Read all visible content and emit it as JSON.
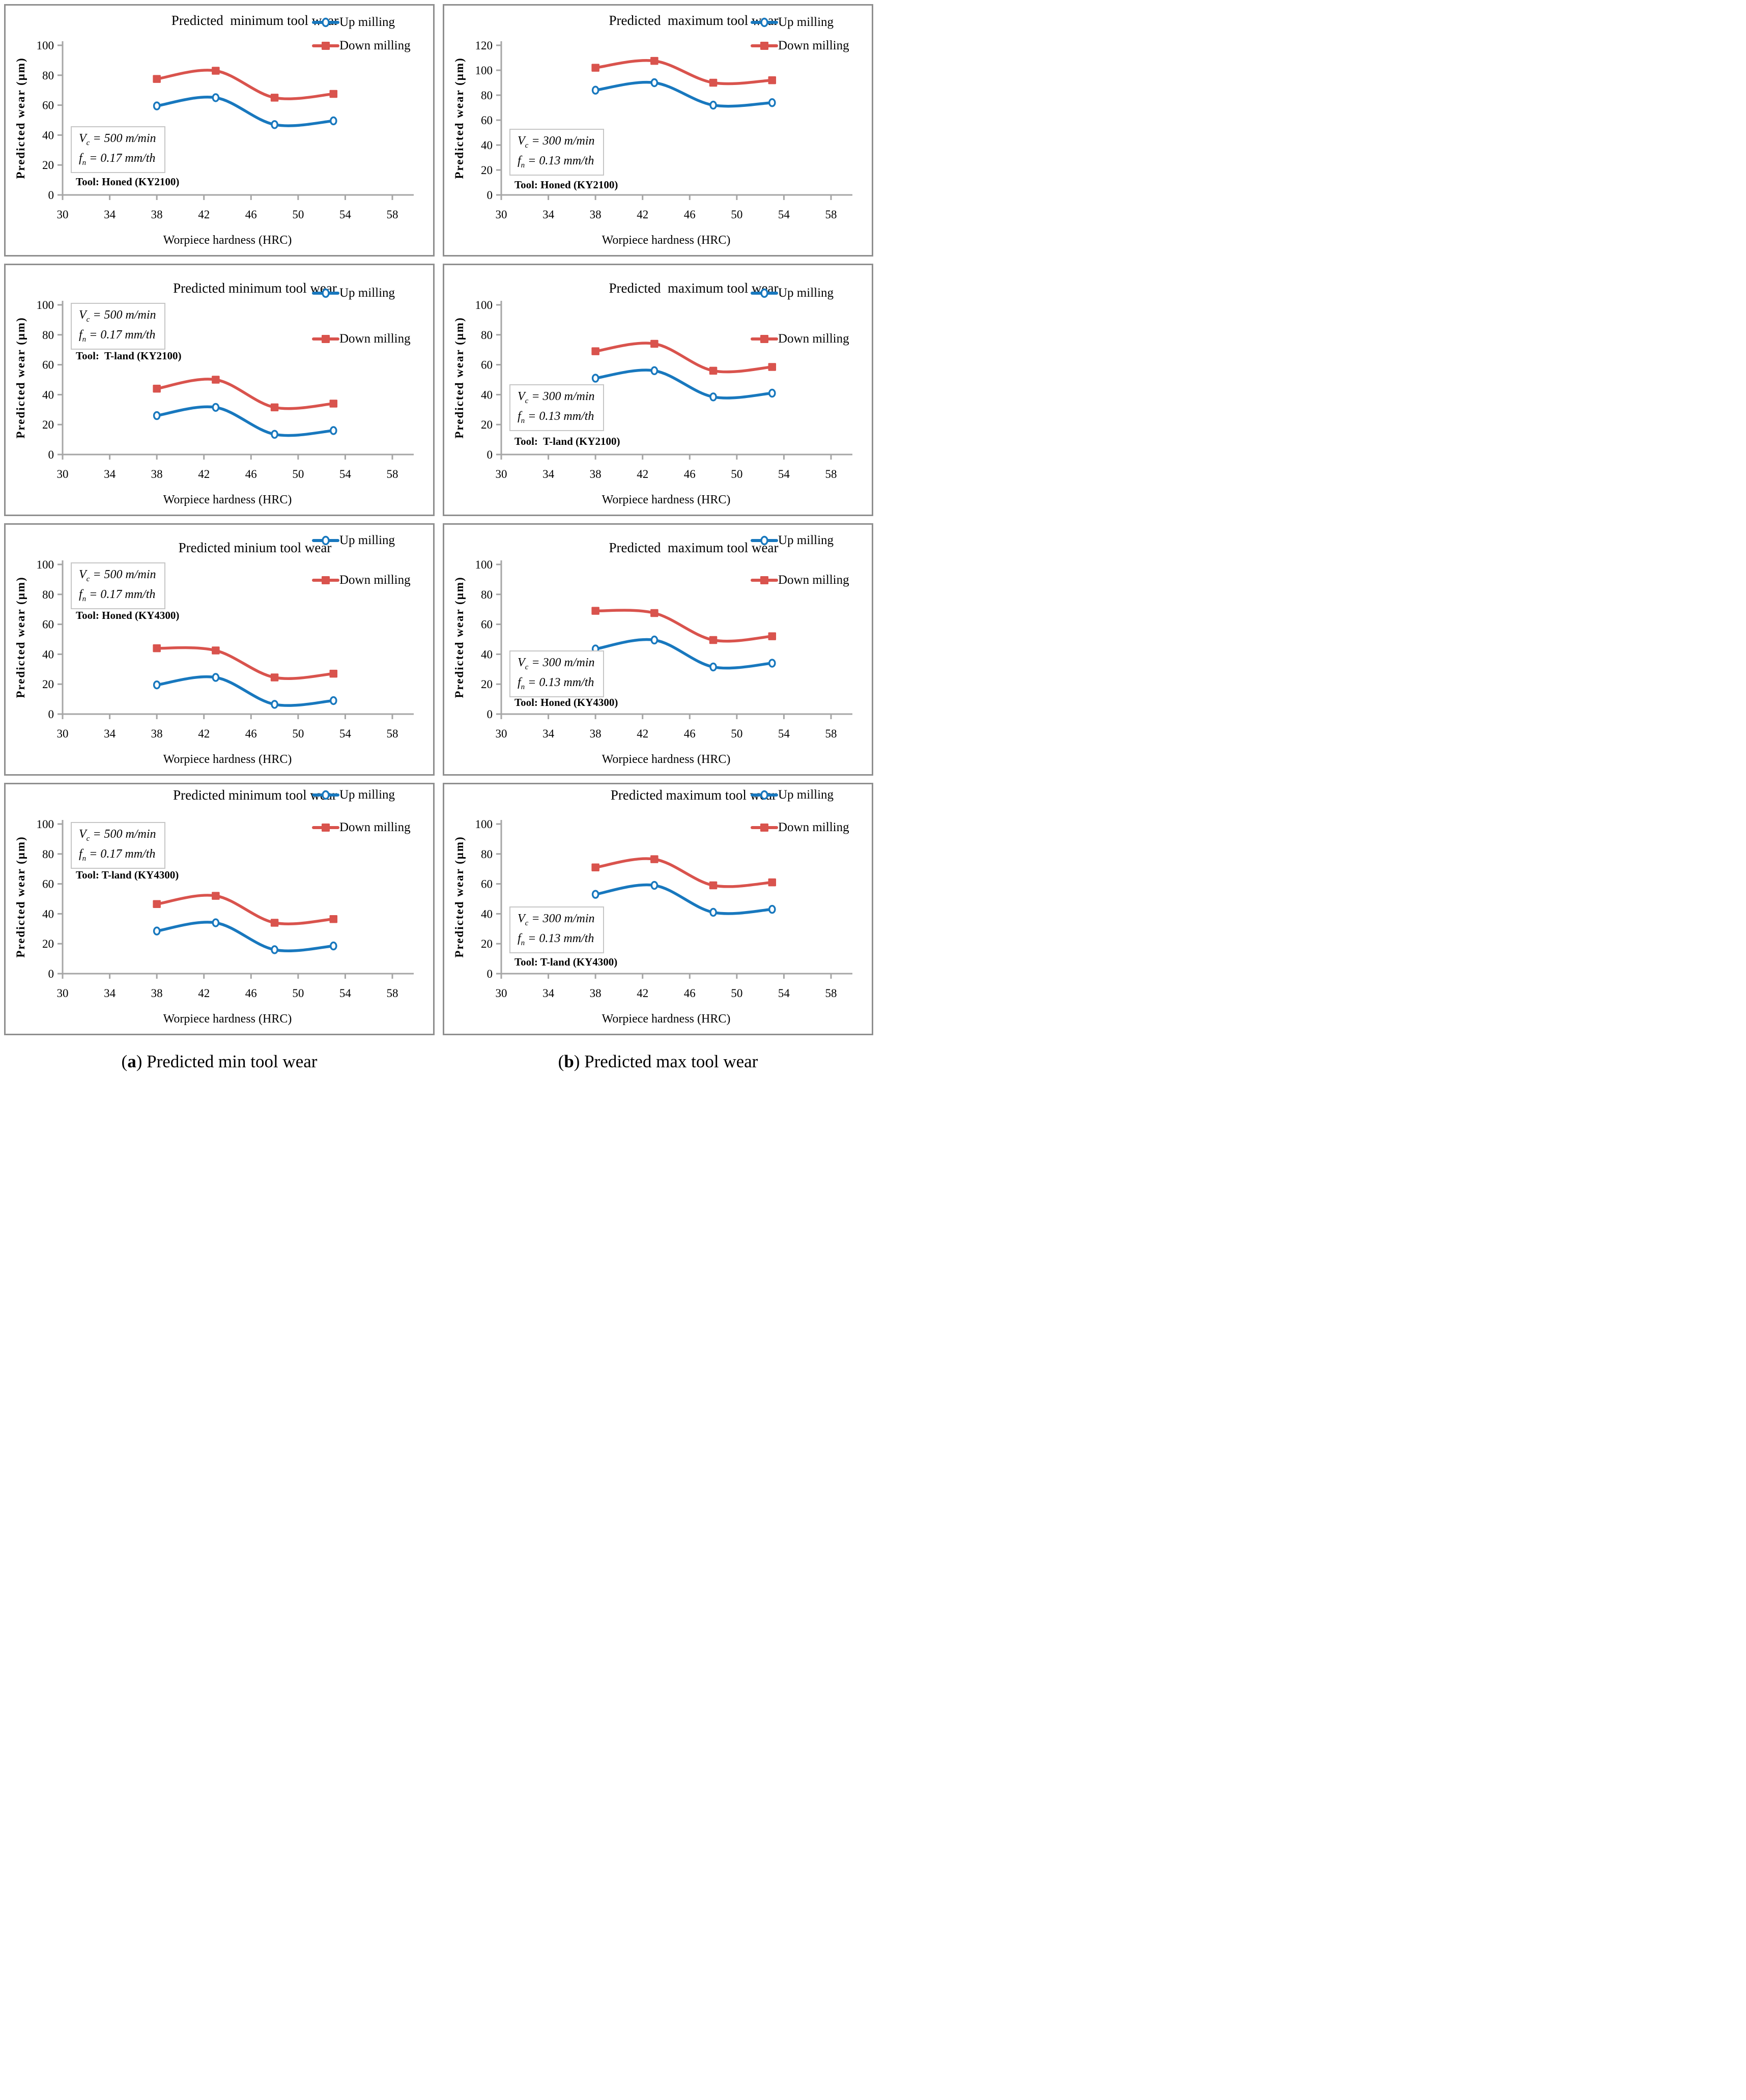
{
  "colors": {
    "up": "#1878be",
    "down": "#d9534d",
    "axis": "#a6a6a6",
    "panel_border": "#8f8f8f",
    "annot_border": "#c6c6c6",
    "text": "#000000"
  },
  "legend": {
    "up": "Up milling",
    "down": "Down milling"
  },
  "captions": [
    {
      "open": "(",
      "letter": "a",
      "close": ")",
      "text": " Predicted min tool wear"
    },
    {
      "open": "(",
      "letter": "b",
      "close": ")",
      "text": " Predicted max tool wear"
    }
  ],
  "chart_data": [
    {
      "type": "line",
      "title": "Predicted  minimum tool wear",
      "xlabel": "Worpiece hardness (HRC)",
      "ylabel": "Predicted wear (μm)",
      "x": [
        38,
        43,
        48,
        53
      ],
      "xlim": [
        30,
        58
      ],
      "x_ticks": [
        30,
        34,
        38,
        42,
        46,
        50,
        54,
        58
      ],
      "ylim": [
        0,
        100
      ],
      "y_ticks": [
        0,
        20,
        40,
        60,
        80,
        100
      ],
      "series": [
        {
          "name": "Up milling",
          "color_key": "up",
          "marker": "circle",
          "values": [
            59.5,
            65,
            47,
            49.5
          ]
        },
        {
          "name": "Down milling",
          "color_key": "down",
          "marker": "square",
          "values": [
            77.5,
            83,
            65,
            67.5
          ]
        }
      ],
      "params": {
        "v_sym": "V",
        "v_sub": "c",
        "v_rest": " = 500 m/min",
        "f_sym": "f",
        "f_sub": "n",
        "f_rest": " = 0.17 mm/th"
      },
      "tool": "Tool: Honed (KY2100)",
      "layout": {
        "title_top": 14,
        "legend_tops": [
          20,
          66
        ],
        "annot_top": 237,
        "tool_top": 334
      }
    },
    {
      "type": "line",
      "title": "Predicted  maximum tool wear",
      "xlabel": "Worpiece hardness (HRC)",
      "ylabel": "Predicted wear (μm)",
      "x": [
        38,
        43,
        48,
        53
      ],
      "xlim": [
        30,
        58
      ],
      "x_ticks": [
        30,
        34,
        38,
        42,
        46,
        50,
        54,
        58
      ],
      "ylim": [
        0,
        120
      ],
      "y_ticks": [
        0,
        20,
        40,
        60,
        80,
        100,
        120
      ],
      "series": [
        {
          "name": "Up milling",
          "color_key": "up",
          "marker": "circle",
          "values": [
            84,
            90,
            72,
            74
          ]
        },
        {
          "name": "Down milling",
          "color_key": "down",
          "marker": "square",
          "values": [
            102,
            107.5,
            90,
            92
          ]
        }
      ],
      "params": {
        "v_sym": "V",
        "v_sub": "c",
        "v_rest": " = 300 m/min",
        "f_sym": "f",
        "f_sub": "n",
        "f_rest": " = 0.13 mm/th"
      },
      "tool": "Tool: Honed (KY2100)",
      "layout": {
        "title_top": 14,
        "legend_tops": [
          20,
          66
        ],
        "annot_top": 242,
        "tool_top": 340
      }
    },
    {
      "type": "line",
      "title": "Predicted minimum tool wear",
      "xlabel": "Worpiece hardness (HRC)",
      "ylabel": "Predicted wear (μm)",
      "x": [
        38,
        43,
        48,
        53
      ],
      "xlim": [
        30,
        58
      ],
      "x_ticks": [
        30,
        34,
        38,
        42,
        46,
        50,
        54,
        58
      ],
      "ylim": [
        0,
        100
      ],
      "y_ticks": [
        0,
        20,
        40,
        60,
        80,
        100
      ],
      "series": [
        {
          "name": "Up milling",
          "color_key": "up",
          "marker": "circle",
          "values": [
            26,
            31.5,
            13.5,
            16
          ]
        },
        {
          "name": "Down milling",
          "color_key": "down",
          "marker": "square",
          "values": [
            44,
            50,
            31.5,
            34
          ]
        }
      ],
      "params": {
        "v_sym": "V",
        "v_sub": "c",
        "v_rest": " = 500 m/min",
        "f_sym": "f",
        "f_sub": "n",
        "f_rest": " = 0.17 mm/th"
      },
      "tool": "Tool:  T-land (KY2100)",
      "layout": {
        "title_top": 30,
        "legend_tops": [
          42,
          132
        ],
        "annot_top": 74,
        "tool_top": 166
      }
    },
    {
      "type": "line",
      "title": "Predicted  maximum tool wear",
      "xlabel": "Worpiece hardness (HRC)",
      "ylabel": "Predicted wear (μm)",
      "x": [
        38,
        43,
        48,
        53
      ],
      "xlim": [
        30,
        58
      ],
      "x_ticks": [
        30,
        34,
        38,
        42,
        46,
        50,
        54,
        58
      ],
      "ylim": [
        0,
        100
      ],
      "y_ticks": [
        0,
        20,
        40,
        60,
        80,
        100
      ],
      "series": [
        {
          "name": "Up milling",
          "color_key": "up",
          "marker": "circle",
          "values": [
            51,
            56,
            38.5,
            41
          ]
        },
        {
          "name": "Down milling",
          "color_key": "down",
          "marker": "square",
          "values": [
            69,
            74,
            56,
            58.5
          ]
        }
      ],
      "params": {
        "v_sym": "V",
        "v_sub": "c",
        "v_rest": " = 300 m/min",
        "f_sym": "f",
        "f_sub": "n",
        "f_rest": " = 0.13 mm/th"
      },
      "tool": "Tool:  T-land (KY2100)",
      "layout": {
        "title_top": 30,
        "legend_tops": [
          42,
          132
        ],
        "annot_top": 234,
        "tool_top": 334
      }
    },
    {
      "type": "line",
      "title": "Predicted minium tool wear",
      "xlabel": "Worpiece hardness (HRC)",
      "ylabel": "Predicted wear (μm)",
      "x": [
        38,
        43,
        48,
        53
      ],
      "xlim": [
        30,
        58
      ],
      "x_ticks": [
        30,
        34,
        38,
        42,
        46,
        50,
        54,
        58
      ],
      "ylim": [
        0,
        100
      ],
      "y_ticks": [
        0,
        20,
        40,
        60,
        80,
        100
      ],
      "series": [
        {
          "name": "Up milling",
          "color_key": "up",
          "marker": "circle",
          "values": [
            19.5,
            24.5,
            6.5,
            9
          ]
        },
        {
          "name": "Down milling",
          "color_key": "down",
          "marker": "square",
          "values": [
            44,
            42.5,
            24.5,
            27
          ]
        }
      ],
      "params": {
        "v_sym": "V",
        "v_sub": "c",
        "v_rest": " = 500 m/min",
        "f_sym": "f",
        "f_sub": "n",
        "f_rest": " = 0.17 mm/th"
      },
      "tool": "Tool: Honed (KY4300)",
      "layout": {
        "title_top": 30,
        "legend_tops": [
          18,
          96
        ],
        "annot_top": 74,
        "tool_top": 166
      }
    },
    {
      "type": "line",
      "title": "Predicted  maximum tool wear",
      "xlabel": "Worpiece hardness (HRC)",
      "ylabel": "Predicted wear (μm)",
      "x": [
        38,
        43,
        48,
        53
      ],
      "xlim": [
        30,
        58
      ],
      "x_ticks": [
        30,
        34,
        38,
        42,
        46,
        50,
        54,
        58
      ],
      "ylim": [
        0,
        100
      ],
      "y_ticks": [
        0,
        20,
        40,
        60,
        80,
        100
      ],
      "series": [
        {
          "name": "Up milling",
          "color_key": "up",
          "marker": "circle",
          "values": [
            43.5,
            49.5,
            31.5,
            34
          ]
        },
        {
          "name": "Down milling",
          "color_key": "down",
          "marker": "square",
          "values": [
            69,
            67.5,
            49.5,
            52
          ]
        }
      ],
      "params": {
        "v_sym": "V",
        "v_sub": "c",
        "v_rest": " = 300 m/min",
        "f_sym": "f",
        "f_sub": "n",
        "f_rest": " = 0.13 mm/th"
      },
      "tool": "Tool: Honed (KY4300)",
      "layout": {
        "title_top": 30,
        "legend_tops": [
          18,
          96
        ],
        "annot_top": 247,
        "tool_top": 337
      }
    },
    {
      "type": "line",
      "title": "Predicted minimum tool wear",
      "xlabel": "Worpiece hardness (HRC)",
      "ylabel": "Predicted wear (μm)",
      "x": [
        38,
        43,
        48,
        53
      ],
      "xlim": [
        30,
        58
      ],
      "x_ticks": [
        30,
        34,
        38,
        42,
        46,
        50,
        54,
        58
      ],
      "ylim": [
        0,
        100
      ],
      "y_ticks": [
        0,
        20,
        40,
        60,
        80,
        100
      ],
      "series": [
        {
          "name": "Up milling",
          "color_key": "up",
          "marker": "circle",
          "values": [
            28.5,
            34,
            16,
            18.5
          ]
        },
        {
          "name": "Down milling",
          "color_key": "down",
          "marker": "square",
          "values": [
            46.5,
            52,
            34,
            36.5
          ]
        }
      ],
      "params": {
        "v_sym": "V",
        "v_sub": "c",
        "v_rest": " = 500 m/min",
        "f_sym": "f",
        "f_sub": "n",
        "f_rest": " = 0.17 mm/th"
      },
      "tool": "Tool: T-land (KY4300)",
      "layout": {
        "title_top": 6,
        "legend_tops": [
          8,
          72
        ],
        "annot_top": 74,
        "tool_top": 166
      }
    },
    {
      "type": "line",
      "title": "Predicted maximum tool wear",
      "xlabel": "Worpiece hardness (HRC)",
      "ylabel": "Predicted wear (μm)",
      "x": [
        38,
        43,
        48,
        53
      ],
      "xlim": [
        30,
        58
      ],
      "x_ticks": [
        30,
        34,
        38,
        42,
        46,
        50,
        54,
        58
      ],
      "ylim": [
        0,
        100
      ],
      "y_ticks": [
        0,
        20,
        40,
        60,
        80,
        100
      ],
      "series": [
        {
          "name": "Up milling",
          "color_key": "up",
          "marker": "circle",
          "values": [
            53,
            59,
            41,
            43
          ]
        },
        {
          "name": "Down milling",
          "color_key": "down",
          "marker": "square",
          "values": [
            71,
            76.5,
            59,
            61
          ]
        }
      ],
      "params": {
        "v_sym": "V",
        "v_sub": "c",
        "v_rest": " = 300 m/min",
        "f_sym": "f",
        "f_sub": "n",
        "f_rest": " = 0.13 mm/th"
      },
      "tool": "Tool: T-land (KY4300)",
      "layout": {
        "title_top": 6,
        "legend_tops": [
          8,
          72
        ],
        "annot_top": 240,
        "tool_top": 337
      }
    }
  ]
}
